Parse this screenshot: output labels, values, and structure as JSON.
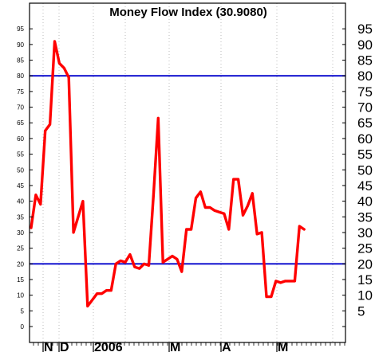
{
  "chart_data": {
    "type": "line",
    "title": "Money Flow Index (30.9080)",
    "ylim": [
      0,
      100
    ],
    "y_ticks": [
      0,
      5,
      10,
      15,
      20,
      25,
      30,
      35,
      40,
      45,
      50,
      55,
      60,
      65,
      70,
      75,
      80,
      85,
      90,
      95
    ],
    "x_month_labels": [
      "N",
      "D",
      "2006",
      "M",
      "A",
      "M"
    ],
    "reference_lines": [
      80,
      20
    ],
    "grid": "vertical dotted",
    "colors": {
      "line": "#ff0000",
      "reference": "#0000cc",
      "grid": "#bbbbbb",
      "frame": "#000000"
    },
    "series": [
      {
        "values": [
          31.5,
          42,
          39,
          62.5,
          64.5,
          91,
          84,
          82.5,
          79.5,
          30,
          35,
          40,
          6.5,
          8.5,
          10.5,
          10.5,
          11.5,
          11.5,
          20,
          21,
          20.5,
          23,
          19,
          18.5,
          20,
          19.5,
          42,
          66.5,
          20.5,
          21.5,
          22.5,
          21.5,
          17.5,
          31,
          31,
          41,
          43,
          38,
          38,
          37,
          36.5,
          36,
          31,
          47,
          47,
          35.5,
          38.5,
          42.5,
          29.5,
          30,
          9.5,
          9.5,
          14.5,
          14,
          14.5,
          14.5,
          14.5,
          32,
          31
        ]
      }
    ]
  }
}
